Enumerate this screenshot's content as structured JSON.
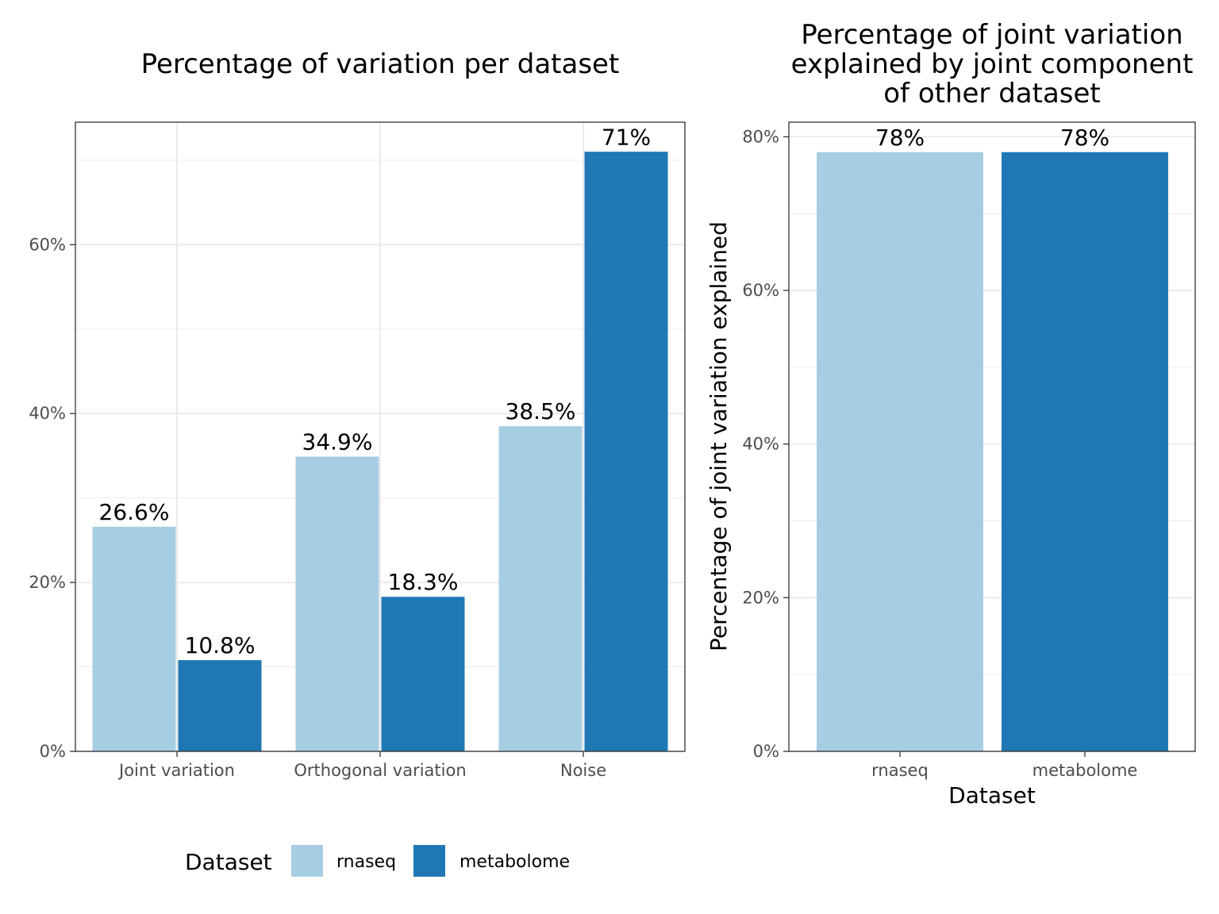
{
  "colors": {
    "rnaseq": "#a6cee3",
    "metabolome": "#1f78b4"
  },
  "legend": {
    "title": "Dataset",
    "items": [
      {
        "label": "rnaseq",
        "color": "#a6cee3"
      },
      {
        "label": "metabolome",
        "color": "#1f78b4"
      }
    ]
  },
  "chart_data": [
    {
      "type": "bar",
      "title": "Percentage of variation per dataset",
      "xlabel": "",
      "ylabel": "",
      "categories": [
        "Joint variation",
        "Orthogonal variation",
        "Noise"
      ],
      "series": [
        {
          "name": "rnaseq",
          "values": [
            26.6,
            34.9,
            38.5
          ],
          "labels": [
            "26.6%",
            "34.9%",
            "38.5%"
          ]
        },
        {
          "name": "metabolome",
          "values": [
            10.8,
            18.3,
            71
          ],
          "labels": [
            "10.8%",
            "18.3%",
            "71%"
          ]
        }
      ],
      "ylim": [
        0,
        74.5
      ],
      "yticks": [
        0,
        20,
        40,
        60
      ],
      "ytick_labels": [
        "0%",
        "20%",
        "40%",
        "60%"
      ],
      "grid": true
    },
    {
      "type": "bar",
      "title_lines": [
        "Percentage of joint variation",
        "explained by joint component",
        "of other dataset"
      ],
      "xlabel": "Dataset",
      "ylabel": "Percentage of joint variation explained",
      "categories": [
        "rnaseq",
        "metabolome"
      ],
      "values": [
        78,
        78
      ],
      "labels": [
        "78%",
        "78%"
      ],
      "ylim": [
        0,
        81.9
      ],
      "yticks": [
        0,
        20,
        40,
        60,
        80
      ],
      "ytick_labels": [
        "0%",
        "20%",
        "40%",
        "60%",
        "80%"
      ],
      "grid": true
    }
  ]
}
